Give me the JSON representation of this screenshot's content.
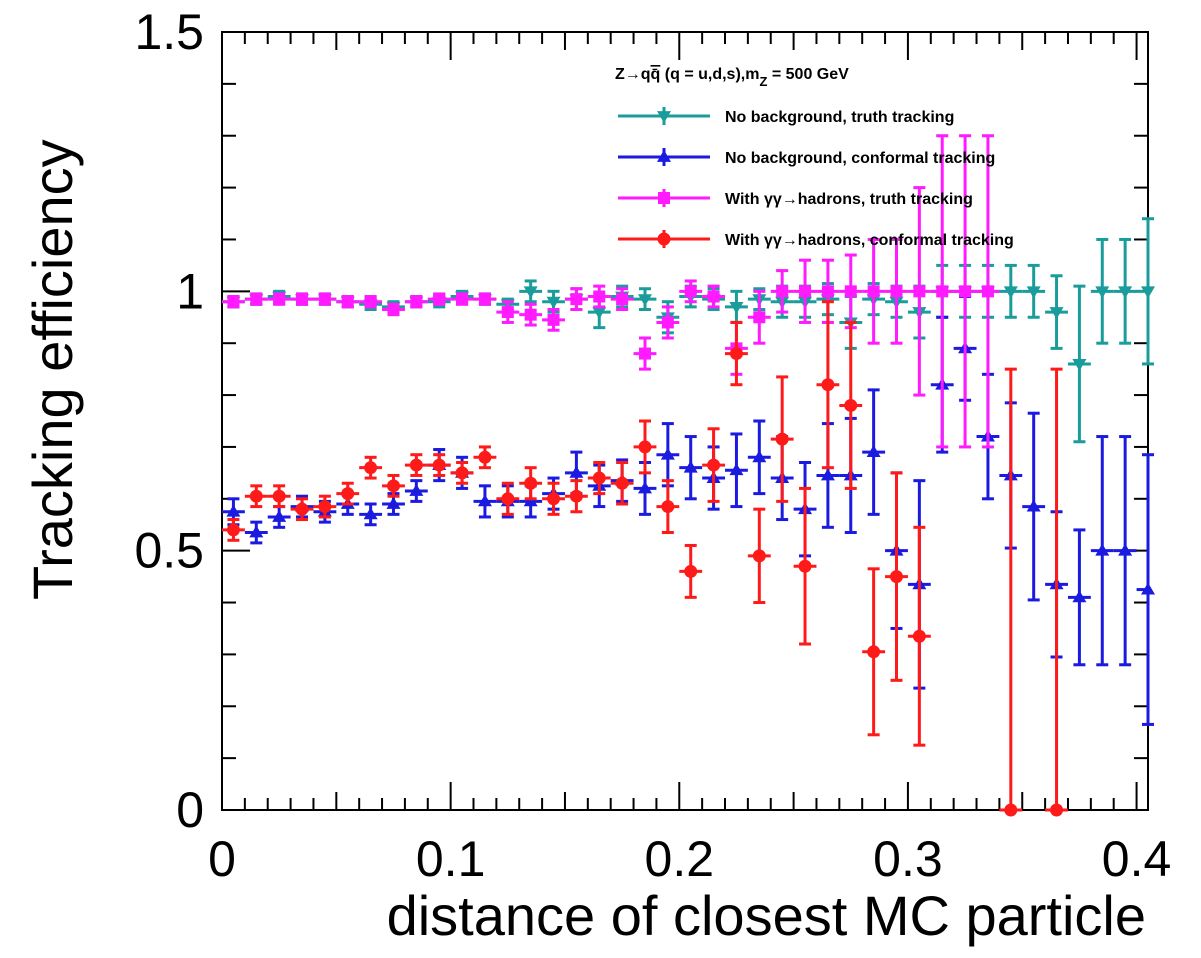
{
  "chart_data": {
    "type": "scatter",
    "xlabel": "distance of closest MC particle",
    "ylabel": "Tracking efficiency",
    "xlim": [
      0,
      0.405
    ],
    "ylim": [
      0,
      1.5
    ],
    "x_ticks": [
      "0",
      "0.1",
      "0.2",
      "0.3",
      "0.4"
    ],
    "x_tick_values": [
      0,
      0.1,
      0.2,
      0.3,
      0.4
    ],
    "y_ticks": [
      "0",
      "0.5",
      "1",
      "1.5"
    ],
    "y_tick_values": [
      0,
      0.5,
      1,
      1.5
    ],
    "grid": false,
    "legend_placement": "top-right",
    "legend_header": "Z→qq̄ (q = u,d,s),m_Z = 500 GeV",
    "legend_header_parts": [
      "Z→q",
      "q̄",
      " (q = u,d,s),m",
      "Z",
      " = 500 GeV"
    ],
    "x_bin_half_width": 0.005,
    "series": [
      {
        "name": "No background, truth tracking",
        "color": "#1a9c9c",
        "marker": "triangle-down",
        "points": [
          [
            0.005,
            0.98,
            0.01
          ],
          [
            0.015,
            0.985,
            0.01
          ],
          [
            0.025,
            0.99,
            0.01
          ],
          [
            0.035,
            0.985,
            0.01
          ],
          [
            0.045,
            0.985,
            0.01
          ],
          [
            0.055,
            0.98,
            0.01
          ],
          [
            0.065,
            0.975,
            0.01
          ],
          [
            0.075,
            0.97,
            0.01
          ],
          [
            0.085,
            0.98,
            0.01
          ],
          [
            0.095,
            0.98,
            0.01
          ],
          [
            0.105,
            0.99,
            0.01
          ],
          [
            0.115,
            0.985,
            0.01
          ],
          [
            0.125,
            0.975,
            0.01
          ],
          [
            0.135,
            1.0,
            0.02
          ],
          [
            0.145,
            0.98,
            0.02
          ],
          [
            0.155,
            0.985,
            0.02
          ],
          [
            0.165,
            0.96,
            0.03
          ],
          [
            0.175,
            0.99,
            0.02
          ],
          [
            0.185,
            0.985,
            0.02
          ],
          [
            0.195,
            0.95,
            0.03
          ],
          [
            0.205,
            0.99,
            0.02
          ],
          [
            0.215,
            0.985,
            0.02
          ],
          [
            0.225,
            0.97,
            0.03
          ],
          [
            0.235,
            0.985,
            0.02
          ],
          [
            0.245,
            0.98,
            0.03
          ],
          [
            0.255,
            0.98,
            0.03
          ],
          [
            0.265,
            0.985,
            0.03
          ],
          [
            0.275,
            0.94,
            0.05
          ],
          [
            0.285,
            0.985,
            0.03
          ],
          [
            0.295,
            0.98,
            0.03
          ],
          [
            0.305,
            0.96,
            0.05
          ],
          [
            0.315,
            1.0,
            0.05
          ],
          [
            0.325,
            1.0,
            0.05
          ],
          [
            0.335,
            1.0,
            0.05
          ],
          [
            0.345,
            1.0,
            0.05
          ],
          [
            0.355,
            1.0,
            0.05
          ],
          [
            0.365,
            0.96,
            0.07
          ],
          [
            0.375,
            0.86,
            0.15
          ],
          [
            0.385,
            1.0,
            0.1
          ],
          [
            0.395,
            1.0,
            0.1
          ],
          [
            0.405,
            1.0,
            0.14
          ]
        ]
      },
      {
        "name": "No background, conformal tracking",
        "color": "#1a1ae0",
        "marker": "triangle-up",
        "points": [
          [
            0.005,
            0.575,
            0.025
          ],
          [
            0.015,
            0.535,
            0.02
          ],
          [
            0.025,
            0.565,
            0.02
          ],
          [
            0.035,
            0.585,
            0.02
          ],
          [
            0.045,
            0.575,
            0.02
          ],
          [
            0.055,
            0.59,
            0.02
          ],
          [
            0.065,
            0.57,
            0.02
          ],
          [
            0.075,
            0.59,
            0.02
          ],
          [
            0.085,
            0.615,
            0.02
          ],
          [
            0.095,
            0.665,
            0.03
          ],
          [
            0.105,
            0.65,
            0.03
          ],
          [
            0.115,
            0.595,
            0.03
          ],
          [
            0.125,
            0.595,
            0.03
          ],
          [
            0.135,
            0.595,
            0.03
          ],
          [
            0.145,
            0.61,
            0.03
          ],
          [
            0.155,
            0.65,
            0.04
          ],
          [
            0.165,
            0.625,
            0.04
          ],
          [
            0.175,
            0.635,
            0.04
          ],
          [
            0.185,
            0.62,
            0.05
          ],
          [
            0.195,
            0.685,
            0.06
          ],
          [
            0.205,
            0.66,
            0.06
          ],
          [
            0.215,
            0.64,
            0.06
          ],
          [
            0.225,
            0.655,
            0.07
          ],
          [
            0.235,
            0.68,
            0.07
          ],
          [
            0.245,
            0.64,
            0.08
          ],
          [
            0.255,
            0.58,
            0.09
          ],
          [
            0.265,
            0.645,
            0.1
          ],
          [
            0.275,
            0.645,
            0.11
          ],
          [
            0.285,
            0.69,
            0.12
          ],
          [
            0.295,
            0.5,
            0.15
          ],
          [
            0.305,
            0.435,
            0.2
          ],
          [
            0.315,
            0.82,
            0.13
          ],
          [
            0.325,
            0.89,
            0.1
          ],
          [
            0.335,
            0.72,
            0.12
          ],
          [
            0.345,
            0.645,
            0.14
          ],
          [
            0.355,
            0.585,
            0.18
          ],
          [
            0.365,
            0.435,
            0.14
          ],
          [
            0.375,
            0.41,
            0.13
          ],
          [
            0.385,
            0.5,
            0.22
          ],
          [
            0.395,
            0.5,
            0.22
          ],
          [
            0.405,
            0.425,
            0.26
          ]
        ]
      },
      {
        "name": "With γγ→hadrons, truth tracking",
        "color": "#ff1aff",
        "marker": "square",
        "points": [
          [
            0.005,
            0.98,
            0.01
          ],
          [
            0.015,
            0.985,
            0.01
          ],
          [
            0.025,
            0.985,
            0.01
          ],
          [
            0.035,
            0.985,
            0.01
          ],
          [
            0.045,
            0.985,
            0.01
          ],
          [
            0.055,
            0.98,
            0.01
          ],
          [
            0.065,
            0.98,
            0.01
          ],
          [
            0.075,
            0.965,
            0.01
          ],
          [
            0.085,
            0.98,
            0.01
          ],
          [
            0.095,
            0.985,
            0.01
          ],
          [
            0.105,
            0.985,
            0.01
          ],
          [
            0.115,
            0.985,
            0.01
          ],
          [
            0.125,
            0.96,
            0.02
          ],
          [
            0.135,
            0.955,
            0.02
          ],
          [
            0.145,
            0.945,
            0.02
          ],
          [
            0.155,
            0.985,
            0.02
          ],
          [
            0.165,
            0.99,
            0.02
          ],
          [
            0.175,
            0.985,
            0.02
          ],
          [
            0.185,
            0.88,
            0.03
          ],
          [
            0.195,
            0.94,
            0.03
          ],
          [
            0.205,
            1.0,
            0.02
          ],
          [
            0.215,
            0.99,
            0.02
          ],
          [
            0.225,
            0.89,
            0.05
          ],
          [
            0.235,
            0.95,
            0.05
          ],
          [
            0.245,
            1.0,
            0.04
          ],
          [
            0.255,
            1.0,
            0.06
          ],
          [
            0.265,
            1.0,
            0.06
          ],
          [
            0.275,
            1.0,
            0.07
          ],
          [
            0.285,
            1.0,
            0.1
          ],
          [
            0.295,
            1.0,
            0.1
          ],
          [
            0.305,
            1.0,
            0.2
          ],
          [
            0.315,
            1.0,
            0.3
          ],
          [
            0.325,
            1.0,
            0.3
          ],
          [
            0.335,
            1.0,
            0.3
          ]
        ]
      },
      {
        "name": "With γγ→hadrons, conformal tracking",
        "color": "#ff1a1a",
        "marker": "circle",
        "points": [
          [
            0.005,
            0.54,
            0.02
          ],
          [
            0.015,
            0.605,
            0.02
          ],
          [
            0.025,
            0.605,
            0.02
          ],
          [
            0.035,
            0.58,
            0.02
          ],
          [
            0.045,
            0.585,
            0.02
          ],
          [
            0.055,
            0.61,
            0.02
          ],
          [
            0.065,
            0.66,
            0.02
          ],
          [
            0.075,
            0.625,
            0.02
          ],
          [
            0.085,
            0.665,
            0.02
          ],
          [
            0.095,
            0.665,
            0.02
          ],
          [
            0.105,
            0.65,
            0.02
          ],
          [
            0.115,
            0.68,
            0.02
          ],
          [
            0.125,
            0.6,
            0.03
          ],
          [
            0.135,
            0.63,
            0.03
          ],
          [
            0.145,
            0.6,
            0.03
          ],
          [
            0.155,
            0.605,
            0.03
          ],
          [
            0.165,
            0.64,
            0.03
          ],
          [
            0.175,
            0.63,
            0.04
          ],
          [
            0.185,
            0.7,
            0.05
          ],
          [
            0.195,
            0.585,
            0.05
          ],
          [
            0.205,
            0.46,
            0.05
          ],
          [
            0.215,
            0.665,
            0.07
          ],
          [
            0.225,
            0.88,
            0.06
          ],
          [
            0.235,
            0.49,
            0.09
          ],
          [
            0.245,
            0.715,
            0.12
          ],
          [
            0.255,
            0.47,
            0.15
          ],
          [
            0.265,
            0.82,
            0.16
          ],
          [
            0.275,
            0.78,
            0.16
          ],
          [
            0.285,
            0.305,
            0.16
          ],
          [
            0.295,
            0.45,
            0.2
          ],
          [
            0.305,
            0.335,
            0.21
          ],
          [
            0.345,
            0.0,
            0.85
          ],
          [
            0.365,
            0.0,
            0.85
          ]
        ]
      }
    ]
  }
}
